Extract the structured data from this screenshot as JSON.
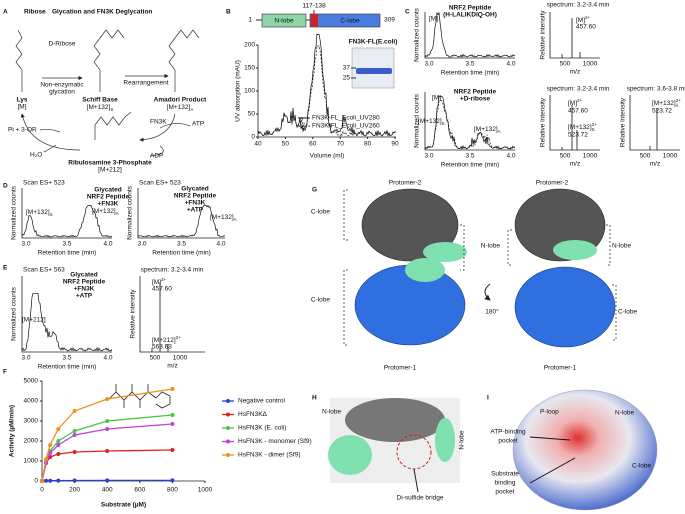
{
  "panel_A": {
    "letter": "A",
    "title_highlight": "Ribose",
    "title_rest": "Glycation and FN3K Deglycation",
    "reagent": "D-Ribose",
    "step1": [
      "Non-enzymatic",
      "glycation"
    ],
    "step2": "Rearrangement",
    "lys": "Lys",
    "lys_mass": "[M]",
    "schiff": "Schiff Base",
    "schiff_mass": {
      "main": "[M+132]",
      "sub": "S"
    },
    "amadori": "Amadori Product",
    "amadori_mass": {
      "main": "[M+132]",
      "sub": "A"
    },
    "enzyme": "FN3K",
    "atp": "ATP",
    "adp": "ADP",
    "release": "Pi + 3-OR",
    "water": "H₂O",
    "product": "Ribulosamine 3-Phosphate",
    "product_mass": "[M+212]"
  },
  "panel_B": {
    "letter": "B",
    "range": "117-138",
    "start": "1",
    "end": "309",
    "n_lobe": "N-lobe",
    "c_lobe": "C-lobe",
    "gel_title": "FN3K-FL(E.coli)",
    "gel_markers": [
      "37",
      "25"
    ],
    "y_label": "UV absorption (mAU)",
    "x_label": "Volume (ml)",
    "yticks": [
      "0",
      "50",
      "100",
      "150",
      "200"
    ],
    "xticks": [
      "40",
      "50",
      "60",
      "70",
      "80",
      "90"
    ],
    "legend": [
      "FN3K-FL_Ecoli_UV280",
      "FN3K-FL_Ecoli_UV260"
    ]
  },
  "panel_C": {
    "letter": "C",
    "y_label": "Normalized counts",
    "x_label": "Retention time (min)",
    "xticks": [
      "3.0",
      "3.5",
      "4.0"
    ],
    "spec_y_label": "Relative intensity",
    "spec_x_label": "m/z",
    "mz_ticks": [
      "500",
      "1000"
    ],
    "top": {
      "lines": [
        "NRF2 Peptide",
        "(H-LALIKDIQ-OH)"
      ],
      "peak": "[M]",
      "spectrum": "spectrum: 3.2-3.4 min",
      "ion": {
        "main": "[M]",
        "sup": "2+"
      },
      "mz": "457.60"
    },
    "bottom": {
      "lines": [
        "NRF2 Peptide",
        "+D-ribose"
      ],
      "peaks": [
        "[M]",
        {
          "main": "[M+132]",
          "sub": "S"
        },
        {
          "main": "[M+132]",
          "sub": "A"
        }
      ],
      "spectrum1": "spectrum: 3.2-3.4 min",
      "ions1": [
        {
          "main": "[M]",
          "sup": "2+"
        },
        "457.60",
        {
          "main": "[M+132]",
          "sub": "S",
          "sup": "2+"
        },
        "523.72"
      ],
      "spectrum2": "spectrum: 3.6-3.8 min",
      "ions2": [
        {
          "main": "[M+132]",
          "sub": "A",
          "sup": "2+"
        },
        "523.72"
      ]
    }
  },
  "panel_D": {
    "letter": "D",
    "y_label": "Normalized counts",
    "x_label": "Retention time (min)",
    "xticks": [
      "3.0",
      "3.5",
      "4.0"
    ],
    "left": {
      "scan": "Scan ES+ 523",
      "lines": [
        "Glycated",
        "NRF2 Peptide",
        "+FN3K"
      ],
      "peaks": [
        {
          "main": "[M+132]",
          "sub": "S"
        },
        {
          "main": "[M+132]",
          "sub": "A"
        }
      ]
    },
    "right": {
      "scan": "Scan ES+ 523",
      "lines": [
        "Glycated",
        "NRF2 Peptide",
        "+FN3K",
        "+ATP"
      ],
      "peaks": [
        {
          "main": "[M+132]",
          "sub": "A"
        }
      ]
    }
  },
  "panel_E": {
    "letter": "E",
    "scan": "Scan ES+ 563",
    "lines": [
      "Glycated",
      "NRF2 Peptide",
      "+FN3K",
      "+ATP"
    ],
    "peak": "[M+212]",
    "y_label": "Normalized counts",
    "x_label": "Retention time (min)",
    "xticks": [
      "3.0",
      "3.5",
      "4.0"
    ],
    "spectrum": "spectrum: 3.2-3.4 min",
    "ions": [
      {
        "main": "[M]",
        "sup": "2+"
      },
      "457.60",
      {
        "main": "[M+212]",
        "sup": "2+"
      },
      "563.63"
    ],
    "spec_y_label": "Relative intensity",
    "spec_x_label": "m/z",
    "mz_ticks": [
      "500",
      "1000"
    ]
  },
  "panel_F": {
    "letter": "F"
  },
  "chart_data": {
    "type": "line",
    "x_label": "Substrate (µM)",
    "y_label": "Activity (µM/min)",
    "x": [
      0,
      25,
      50,
      100,
      200,
      400,
      800
    ],
    "xlim": [
      0,
      1000
    ],
    "ylim": [
      0,
      5000
    ],
    "xticks": [
      0,
      200,
      400,
      600,
      800,
      1000
    ],
    "yticks": [
      0,
      1000,
      2000,
      3000,
      4000,
      5000
    ],
    "legend": "right",
    "series": [
      {
        "name": "Negative control",
        "color": "#2a3fd6",
        "values": [
          0,
          10,
          15,
          20,
          25,
          30,
          30
        ]
      },
      {
        "name": "HsFN3KΔ",
        "color": "#e02020",
        "values": [
          0,
          900,
          1200,
          1350,
          1450,
          1500,
          1550
        ]
      },
      {
        "name": "HsFN3K (E. coli)",
        "color": "#44c844",
        "values": [
          0,
          1000,
          1500,
          2000,
          2500,
          3000,
          3300
        ]
      },
      {
        "name": "HsFN3K - monomer (Sf9)",
        "color": "#c040e0",
        "values": [
          0,
          900,
          1400,
          1800,
          2300,
          2600,
          2850
        ]
      },
      {
        "name": "HsFN3K - dimer (Sf9)",
        "color": "#f0901a",
        "values": [
          0,
          1100,
          1800,
          2600,
          3500,
          4100,
          4600
        ]
      }
    ]
  },
  "panel_G": {
    "letter": "G",
    "labels": [
      "Protomer-2",
      "Protomer-2",
      "C-lobe",
      "N-lobe",
      "C-lobe",
      "180°",
      "N-lobe",
      "C-lobe",
      "Protomer-1",
      "Protomer-1"
    ]
  },
  "panel_H": {
    "letter": "H",
    "labels": [
      "N-lobe",
      "N-lobe",
      "Di-sulfide bridge"
    ]
  },
  "panel_I": {
    "letter": "I",
    "labels": [
      "P-loop",
      "N-lobe",
      "C-lobe"
    ],
    "atp_pocket": [
      "ATP-binding",
      "pocket"
    ],
    "substrate_pocket": [
      "Substrate",
      "binding",
      "pocket"
    ]
  }
}
